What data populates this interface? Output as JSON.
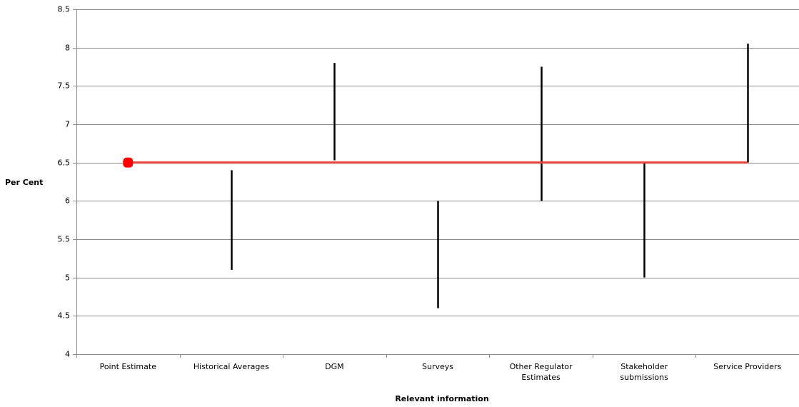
{
  "chart_data": {
    "type": "range",
    "title": "",
    "xlabel": "Relevant information",
    "ylabel": "Per Cent",
    "ylim": [
      4,
      8.5
    ],
    "ytick_step": 0.5,
    "yticks": [
      "4",
      "4.5",
      "5",
      "5.5",
      "6",
      "6.5",
      "7",
      "7.5",
      "8",
      "8.5"
    ],
    "grid": true,
    "categories": [
      [
        "Point Estimate"
      ],
      [
        "Historical Averages"
      ],
      [
        "DGM"
      ],
      [
        "Surveys"
      ],
      [
        "Other Regulator",
        "Estimates"
      ],
      [
        "Stakeholder",
        "submissions"
      ],
      [
        "Service Providers"
      ]
    ],
    "point_estimate": {
      "category_index": 0,
      "value": 6.5,
      "color": "#ff0000"
    },
    "reference_line": {
      "value": 6.5,
      "color": "#e8413b",
      "from_category": 0,
      "to_category": 6
    },
    "ranges": [
      {
        "category_index": 1,
        "low": 5.1,
        "high": 6.4
      },
      {
        "category_index": 2,
        "low": 6.53,
        "high": 7.8
      },
      {
        "category_index": 3,
        "low": 4.6,
        "high": 6.0
      },
      {
        "category_index": 4,
        "low": 6.0,
        "high": 7.75
      },
      {
        "category_index": 5,
        "low": 5.0,
        "high": 6.5
      },
      {
        "category_index": 6,
        "low": 6.5,
        "high": 8.05
      }
    ],
    "range_color": "#000000",
    "grid_color": "#8c8c8c"
  }
}
